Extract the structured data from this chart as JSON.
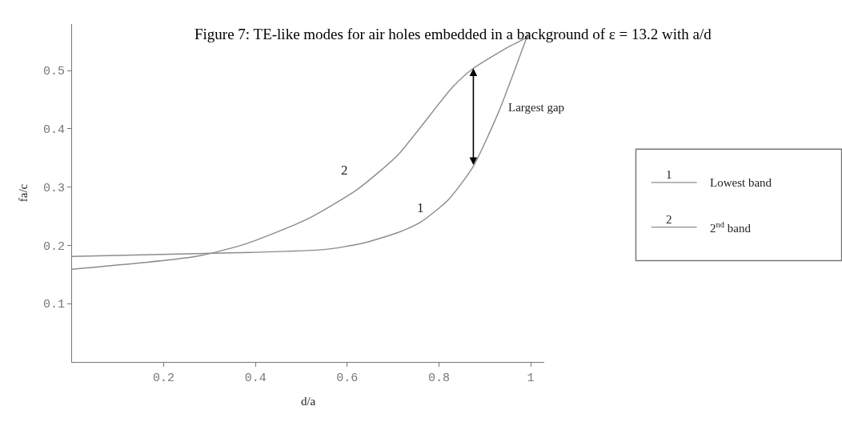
{
  "chart_data": {
    "type": "line",
    "title": "Figure 7: TE-like modes for air holes embedded in a background of ε = 13.2 with a/d",
    "xlabel": "d/a",
    "ylabel": "fa/c",
    "x": [
      0,
      0.27,
      0.38,
      0.51,
      0.62,
      0.71,
      0.83,
      0.875,
      0.95,
      1.0
    ],
    "series": [
      {
        "name": "Lowest band",
        "color": "#8c8c8c",
        "x": [
          0,
          0.39,
          0.55,
          0.63,
          0.71,
          0.76,
          0.82,
          0.875,
          0.93,
          0.995
        ],
        "values": [
          0.181,
          0.188,
          0.193,
          0.203,
          0.222,
          0.24,
          0.278,
          0.336,
          0.429,
          0.565
        ]
      },
      {
        "name": "2$^{nd}$ band",
        "color": "#8c8c8c",
        "values": [
          0.159,
          0.181,
          0.203,
          0.244,
          0.295,
          0.355,
          0.472,
          0.504,
          0.54,
          0.56
        ]
      }
    ],
    "annotations": [
      "1",
      "2",
      "Largest gap",
      "1",
      "2"
    ],
    "xlim": [
      0,
      1.03
    ],
    "ylim": [
      0,
      0.58
    ],
    "xticks": [
      0.2,
      0.4,
      0.6,
      0.8,
      1
    ],
    "yticks": [
      0.1,
      0.2,
      0.3,
      0.4,
      0.5
    ],
    "legend": "right",
    "line_style": "solid"
  }
}
